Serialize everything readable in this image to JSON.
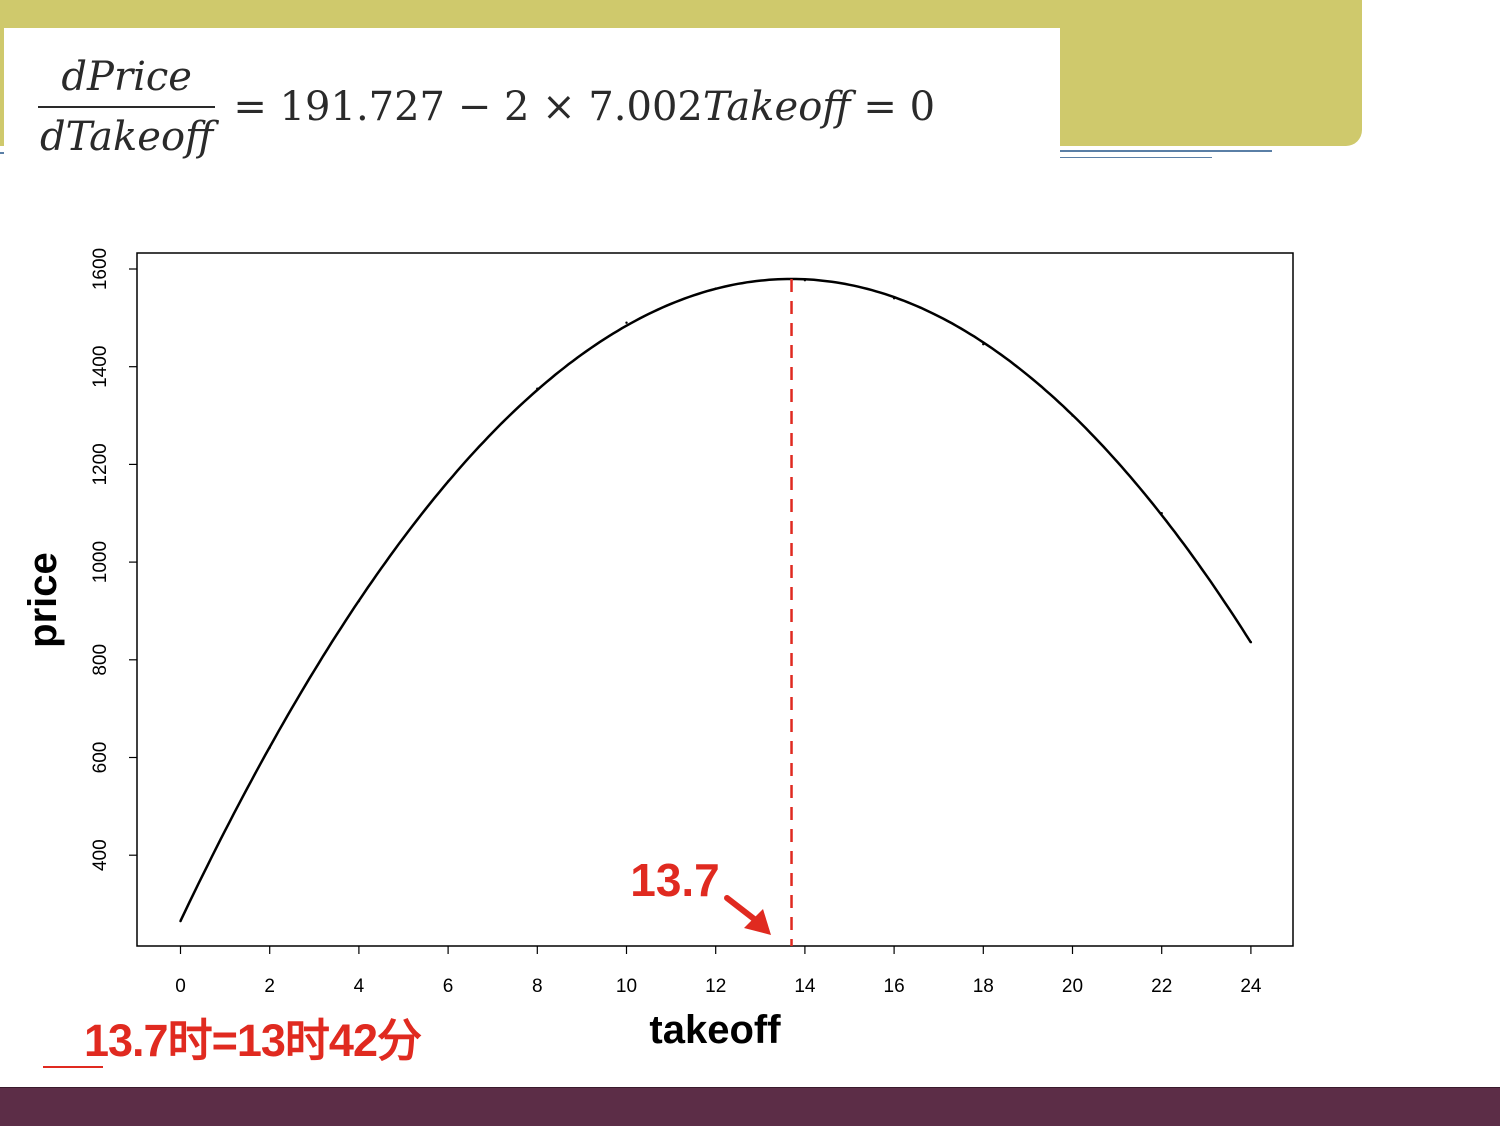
{
  "slide": {
    "formula": {
      "numerator": "dPrice",
      "denominator": "dTakeoff",
      "rhs_prefix": "= 191.727 − 2 × 7.002",
      "rhs_var": "Takeoff",
      "rhs_suffix": " = 0"
    },
    "note": "13.7时=13时42分",
    "colors": {
      "banner": "#cfc96c",
      "footer": "#5c2d47",
      "accent": "#e02a20"
    }
  },
  "chart_data": {
    "type": "line",
    "xlabel": "takeoff",
    "ylabel": "price",
    "xlim": [
      0,
      24
    ],
    "ylim": [
      200,
      1620
    ],
    "x_ticks": [
      0,
      2,
      4,
      6,
      8,
      10,
      12,
      14,
      16,
      18,
      20,
      22,
      24
    ],
    "y_ticks": [
      400,
      600,
      800,
      1000,
      1200,
      1400,
      1600
    ],
    "series": [
      {
        "curve": "quadratic",
        "x": [
          0,
          2,
          4,
          6,
          8,
          10,
          12,
          13.7,
          14,
          16,
          18,
          20,
          22,
          24
        ],
        "y": [
          265,
          620,
          920,
          1165,
          1355,
          1490,
          1560,
          1578,
          1577,
          1540,
          1446,
          1300,
          1100,
          836
        ]
      }
    ],
    "vline": {
      "x": 13.7,
      "style": "dashed",
      "color": "#e02a20"
    },
    "annotation": {
      "text": "13.7",
      "arrow_to_x": 13.7,
      "color": "#e02a20"
    },
    "grid": false,
    "legend": "none"
  }
}
